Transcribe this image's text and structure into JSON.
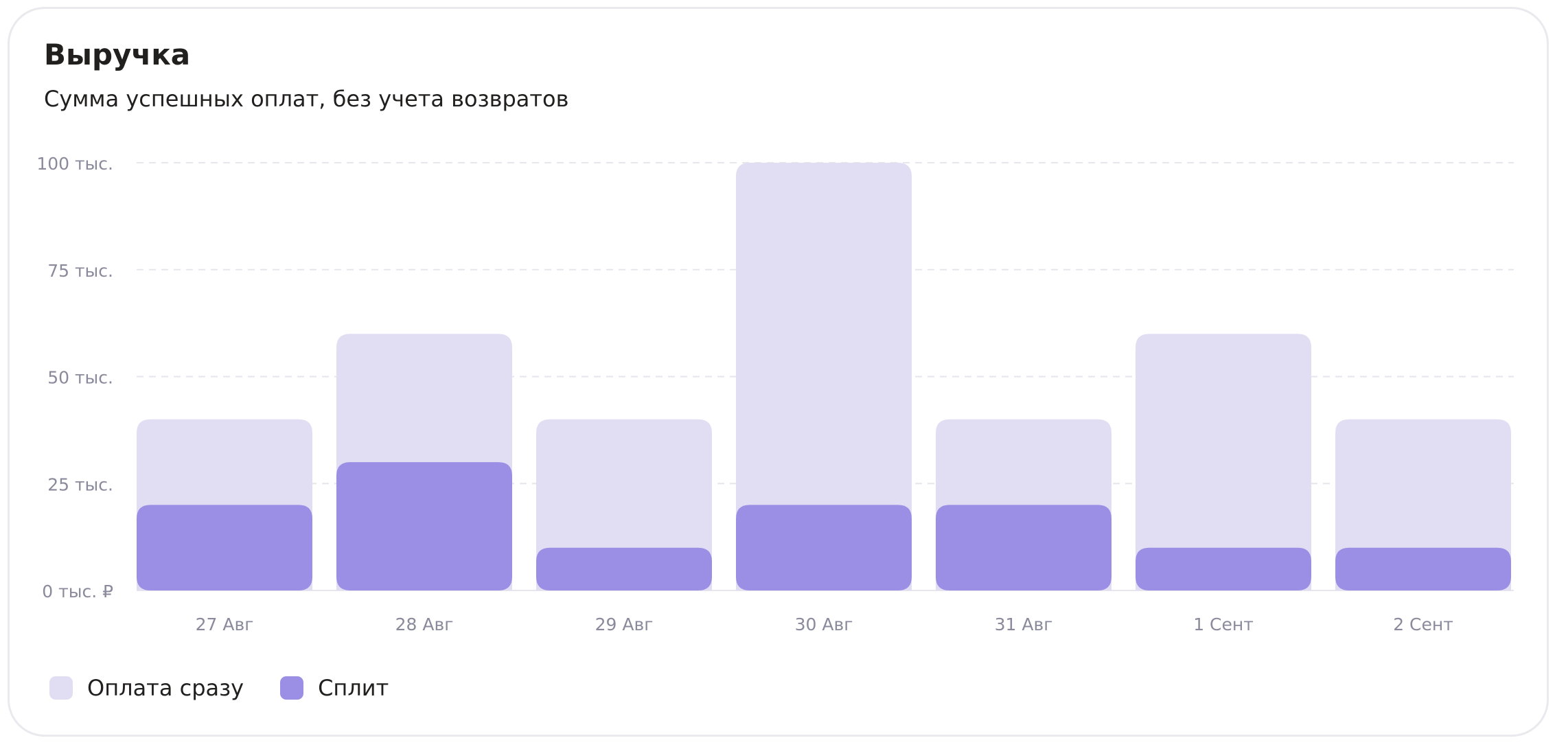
{
  "header": {
    "title": "Выручка",
    "subtitle": "Сумма успешных оплат, без учета возвратов"
  },
  "colors": {
    "immediate": "#e1def3",
    "split": "#9a8fe4",
    "grid": "#e6e6ec",
    "tick_text": "#8a8a9c"
  },
  "chart_data": {
    "type": "bar",
    "stacked": true,
    "categories": [
      "27 Авг",
      "28 Авг",
      "29 Авг",
      "30 Авг",
      "31 Авг",
      "1 Сент",
      "2 Сент"
    ],
    "series": [
      {
        "name": "Сплит",
        "values": [
          20000,
          30000,
          10000,
          20000,
          20000,
          10000,
          10000
        ]
      },
      {
        "name": "Оплата сразу",
        "values": [
          20000,
          30000,
          30000,
          80000,
          20000,
          50000,
          30000
        ]
      }
    ],
    "ylim": [
      0,
      100000
    ],
    "yticks": [
      {
        "value": 0,
        "label": "0 тыс. ₽"
      },
      {
        "value": 25000,
        "label": "25 тыс."
      },
      {
        "value": 50000,
        "label": "50 тыс."
      },
      {
        "value": 75000,
        "label": "75 тыс."
      },
      {
        "value": 100000,
        "label": "100 тыс."
      }
    ],
    "grid": true,
    "legend_position": "bottom-left"
  },
  "legend": [
    {
      "key": "immediate",
      "label": "Оплата сразу"
    },
    {
      "key": "split",
      "label": "Сплит"
    }
  ]
}
